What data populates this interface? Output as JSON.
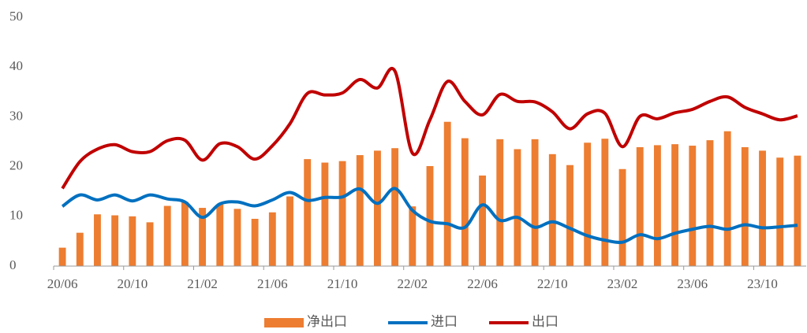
{
  "chart_data": {
    "type": "bar-line",
    "categories": [
      "20/06",
      null,
      null,
      null,
      "20/10",
      null,
      null,
      null,
      "21/02",
      null,
      null,
      null,
      "21/06",
      null,
      null,
      null,
      "21/10",
      null,
      null,
      null,
      "22/02",
      null,
      null,
      null,
      "22/06",
      null,
      null,
      null,
      "22/10",
      null,
      null,
      null,
      "23/02",
      null,
      null,
      null,
      "23/06",
      null,
      null,
      null,
      "23/10",
      null,
      null
    ],
    "series": [
      {
        "name": "净出口",
        "type": "bar",
        "color": "#ED7D31",
        "values": [
          3.7,
          6.7,
          10.4,
          10.2,
          10.0,
          8.8,
          12.1,
          12.9,
          11.7,
          12.4,
          11.5,
          9.5,
          10.8,
          14.0,
          21.5,
          20.8,
          21.1,
          22.3,
          23.2,
          23.7,
          12.0,
          20.1,
          29.0,
          25.7,
          18.2,
          25.5,
          23.5,
          25.5,
          22.5,
          20.3,
          24.8,
          25.6,
          19.5,
          23.9,
          24.3,
          24.5,
          24.2,
          25.3,
          27.1,
          23.9,
          23.2,
          21.8,
          22.2
        ]
      },
      {
        "name": "进口",
        "type": "line",
        "color": "#0070C0",
        "values": [
          12.0,
          14.3,
          13.3,
          14.3,
          13.1,
          14.3,
          13.5,
          12.9,
          9.8,
          12.5,
          12.9,
          12.1,
          13.3,
          14.8,
          13.2,
          13.8,
          13.9,
          15.5,
          12.6,
          15.6,
          11.2,
          9.0,
          8.5,
          7.8,
          12.3,
          9.2,
          9.8,
          7.8,
          8.9,
          7.6,
          6.1,
          5.2,
          4.8,
          6.3,
          5.5,
          6.6,
          7.4,
          8.0,
          7.4,
          8.3,
          7.7,
          7.9,
          8.2
        ]
      },
      {
        "name": "出口",
        "type": "line",
        "color": "#C00000",
        "values": [
          15.6,
          21.0,
          23.5,
          24.4,
          23.0,
          23.0,
          25.2,
          25.3,
          21.3,
          24.6,
          24.0,
          21.5,
          24.2,
          28.6,
          34.7,
          34.4,
          34.8,
          37.5,
          35.8,
          39.2,
          22.7,
          29.4,
          37.1,
          33.1,
          30.4,
          34.5,
          33.1,
          33.0,
          31.0,
          27.6,
          30.6,
          30.7,
          24.0,
          30.1,
          29.6,
          30.8,
          31.5,
          33.1,
          34.0,
          31.9,
          30.6,
          29.4,
          30.2
        ]
      }
    ],
    "ylim": [
      0,
      50
    ],
    "yticks": [
      0,
      10,
      20,
      30,
      40,
      50
    ],
    "grid": false,
    "legend": "bottom"
  }
}
